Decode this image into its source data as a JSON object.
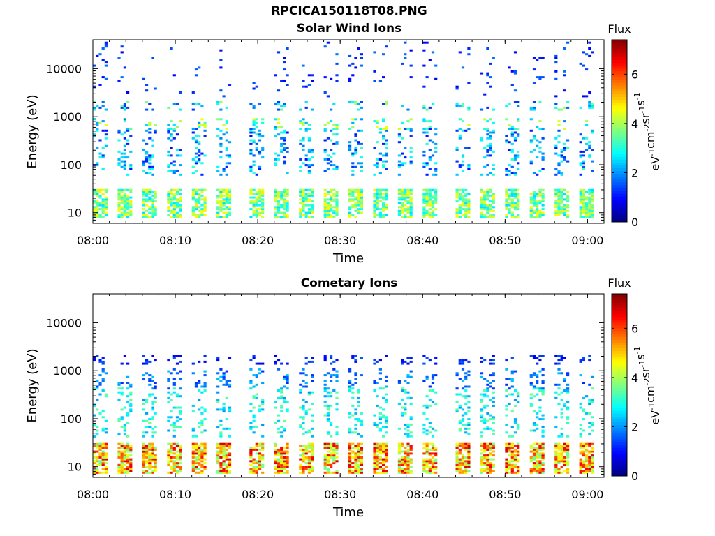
{
  "figure_title": "RPCICA150118T08.PNG",
  "colorbar": {
    "label_text": "Flux",
    "unit_base": "eV",
    "unit_parts": [
      {
        "base": "eV",
        "sup": "-1"
      },
      {
        "base": "cm",
        "sup": "-2"
      },
      {
        "base": "sr",
        "sup": "-1"
      },
      {
        "base": "s",
        "sup": "-1"
      }
    ],
    "range": [
      0,
      7.4
    ],
    "ticks": [
      "0",
      "2",
      "4",
      "6"
    ],
    "colormap": "jet"
  },
  "chart_data": [
    {
      "type": "heatmap",
      "title": "Solar Wind Ions",
      "xlabel": "Time",
      "ylabel": "Energy (eV)",
      "yscale": "log",
      "ylim": [
        6,
        40000
      ],
      "xlim": [
        "08:00",
        "09:02"
      ],
      "xticks": [
        "08:00",
        "08:10",
        "08:20",
        "08:30",
        "08:40",
        "08:50",
        "09:00"
      ],
      "yticks": [
        "10",
        "100",
        "1000",
        "10000"
      ],
      "scan_start_times": [
        "08:00",
        "08:03",
        "08:06",
        "08:09",
        "08:12",
        "08:15",
        "08:19",
        "08:22",
        "08:25",
        "08:28",
        "08:31",
        "08:34",
        "08:37",
        "08:40",
        "08:44",
        "08:47",
        "08:50",
        "08:53",
        "08:56",
        "08:59"
      ],
      "bands": [
        {
          "label": "low-energy band 8-30 eV",
          "emin": 8,
          "emax": 30,
          "flux_min": 2.5,
          "flux_max": 4.8
        },
        {
          "label": "mid band ~600-900 eV",
          "emin": 550,
          "emax": 950,
          "flux_min": 1.8,
          "flux_max": 4.6
        },
        {
          "label": "band ~1500-2000 eV",
          "emin": 1400,
          "emax": 2100,
          "flux_min": 1.2,
          "flux_max": 4.0
        },
        {
          "label": "scattered 100-600 eV",
          "emin": 60,
          "emax": 600,
          "flux_min": 1.0,
          "flux_max": 3.2
        },
        {
          "label": "sparse high energy",
          "emin": 2500,
          "emax": 38000,
          "flux_min": 0.8,
          "flux_max": 1.8
        }
      ]
    },
    {
      "type": "heatmap",
      "title": "Cometary Ions",
      "xlabel": "Time",
      "ylabel": "Energy (eV)",
      "yscale": "log",
      "ylim": [
        6,
        40000
      ],
      "xlim": [
        "08:00",
        "09:02"
      ],
      "xticks": [
        "08:00",
        "08:10",
        "08:20",
        "08:30",
        "08:40",
        "08:50",
        "09:00"
      ],
      "yticks": [
        "10",
        "100",
        "1000",
        "10000"
      ],
      "scan_start_times": [
        "08:00",
        "08:03",
        "08:06",
        "08:09",
        "08:12",
        "08:15",
        "08:19",
        "08:22",
        "08:25",
        "08:28",
        "08:31",
        "08:34",
        "08:37",
        "08:40",
        "08:44",
        "08:47",
        "08:50",
        "08:53",
        "08:56",
        "08:59"
      ],
      "bands": [
        {
          "label": "low-energy band 7-30 eV",
          "emin": 7,
          "emax": 30,
          "flux_min": 3.5,
          "flux_max": 6.8
        },
        {
          "label": "scattered 40-450 eV",
          "emin": 40,
          "emax": 450,
          "flux_min": 2.0,
          "flux_max": 3.6
        },
        {
          "label": "band ~1500-2000 eV",
          "emin": 1400,
          "emax": 2100,
          "flux_min": 0.8,
          "flux_max": 1.6
        },
        {
          "label": "early 500-1100 eV",
          "emin": 400,
          "emax": 1100,
          "flux_min": 1.2,
          "flux_max": 2.4
        }
      ]
    }
  ]
}
